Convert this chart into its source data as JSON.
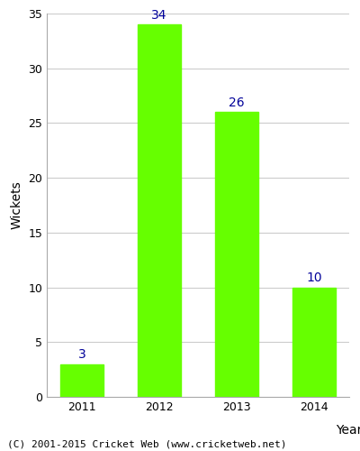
{
  "years": [
    "2011",
    "2012",
    "2013",
    "2014"
  ],
  "values": [
    3,
    34,
    26,
    10
  ],
  "bar_color": "#66ff00",
  "bar_edgecolor": "#66ff00",
  "annotation_color": "#000099",
  "xlabel": "Year",
  "ylabel": "Wickets",
  "ylim": [
    0,
    35
  ],
  "yticks": [
    0,
    5,
    10,
    15,
    20,
    25,
    30,
    35
  ],
  "annotation_fontsize": 10,
  "axis_label_fontsize": 10,
  "tick_fontsize": 9,
  "caption": "(C) 2001-2015 Cricket Web (www.cricketweb.net)",
  "caption_fontsize": 8,
  "plot_background_color": "#ffffff",
  "grid_color": "#cccccc",
  "bar_width": 0.55
}
